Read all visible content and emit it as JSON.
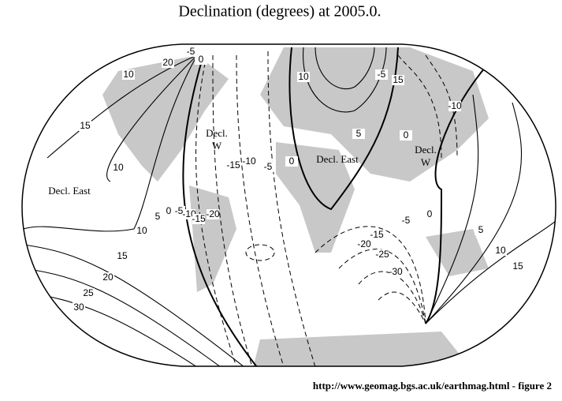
{
  "title": "Declination (degrees) at 2005.0.",
  "regions": [
    {
      "lines": [
        "Decl. East"
      ]
    },
    {
      "lines": [
        "Decl.",
        "W"
      ]
    },
    {
      "lines": [
        "Decl. East"
      ]
    },
    {
      "lines": [
        "Decl.",
        "W"
      ]
    }
  ],
  "contour_labels": [
    "10",
    "20",
    "-5",
    "0",
    "15",
    "10",
    "-15",
    "-10",
    "-5",
    "0",
    "10",
    "5",
    "0",
    "-5",
    "15",
    "-10",
    "5",
    "0",
    "-5",
    "-10",
    "-15",
    "-20",
    "10",
    "15",
    "20",
    "25",
    "30",
    "-5",
    "-15",
    "-20",
    "-25",
    "-30",
    "0",
    "5",
    "10",
    "15"
  ],
  "footer": "http://www.geomag.bgs.ac.uk/earthmag.html - figure 2"
}
